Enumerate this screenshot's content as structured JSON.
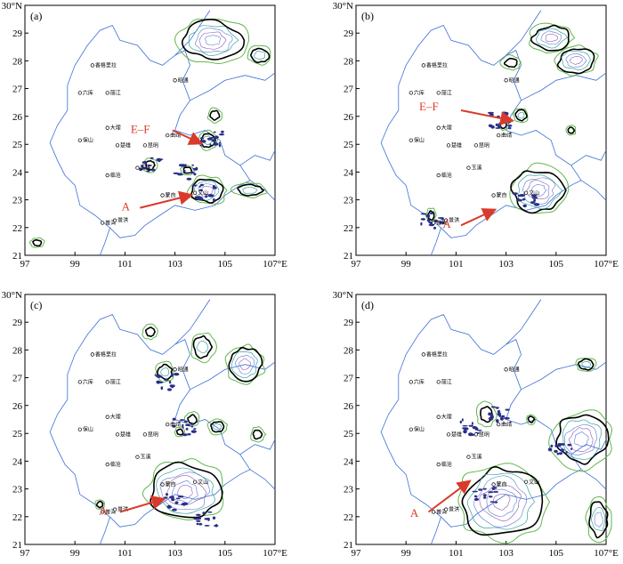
{
  "axes": {
    "x_ticks": [
      "97",
      "99",
      "101",
      "103",
      "105",
      "107°E"
    ],
    "y_ticks": [
      "21",
      "22",
      "23",
      "24",
      "25",
      "26",
      "27",
      "28",
      "29",
      "30°N"
    ]
  },
  "colors": {
    "boundary": "#3b6fd6",
    "contour_outer": "#5fb84a",
    "contour_mid": "#3aa39c",
    "contour_inner_blue": "#5a78d6",
    "contour_inner_purple": "#8a5bb0",
    "contour_bold": "#000000",
    "precip": "#2a2f8a",
    "annotation": "#d93a2b"
  },
  "cities": [
    {
      "name": "香格里拉"
    },
    {
      "name": "丽江"
    },
    {
      "name": "六库"
    },
    {
      "name": "大理"
    },
    {
      "name": "保山"
    },
    {
      "name": "楚雄"
    },
    {
      "name": "昆明"
    },
    {
      "name": "曲靖"
    },
    {
      "name": "玉溪"
    },
    {
      "name": "临沧"
    },
    {
      "name": "普洱"
    },
    {
      "name": "蒙自"
    },
    {
      "name": "文山"
    },
    {
      "name": "景洪"
    },
    {
      "name": "昭通"
    }
  ],
  "panels": [
    {
      "label": "(a)",
      "annotations": [
        {
          "text": "E–F"
        },
        {
          "text": "A"
        }
      ]
    },
    {
      "label": "(b)",
      "annotations": [
        {
          "text": "E–F"
        },
        {
          "text": "A"
        }
      ]
    },
    {
      "label": "(c)",
      "annotations": [
        {
          "text": "A"
        }
      ]
    },
    {
      "label": "(d)",
      "annotations": [
        {
          "text": "A"
        }
      ]
    }
  ]
}
